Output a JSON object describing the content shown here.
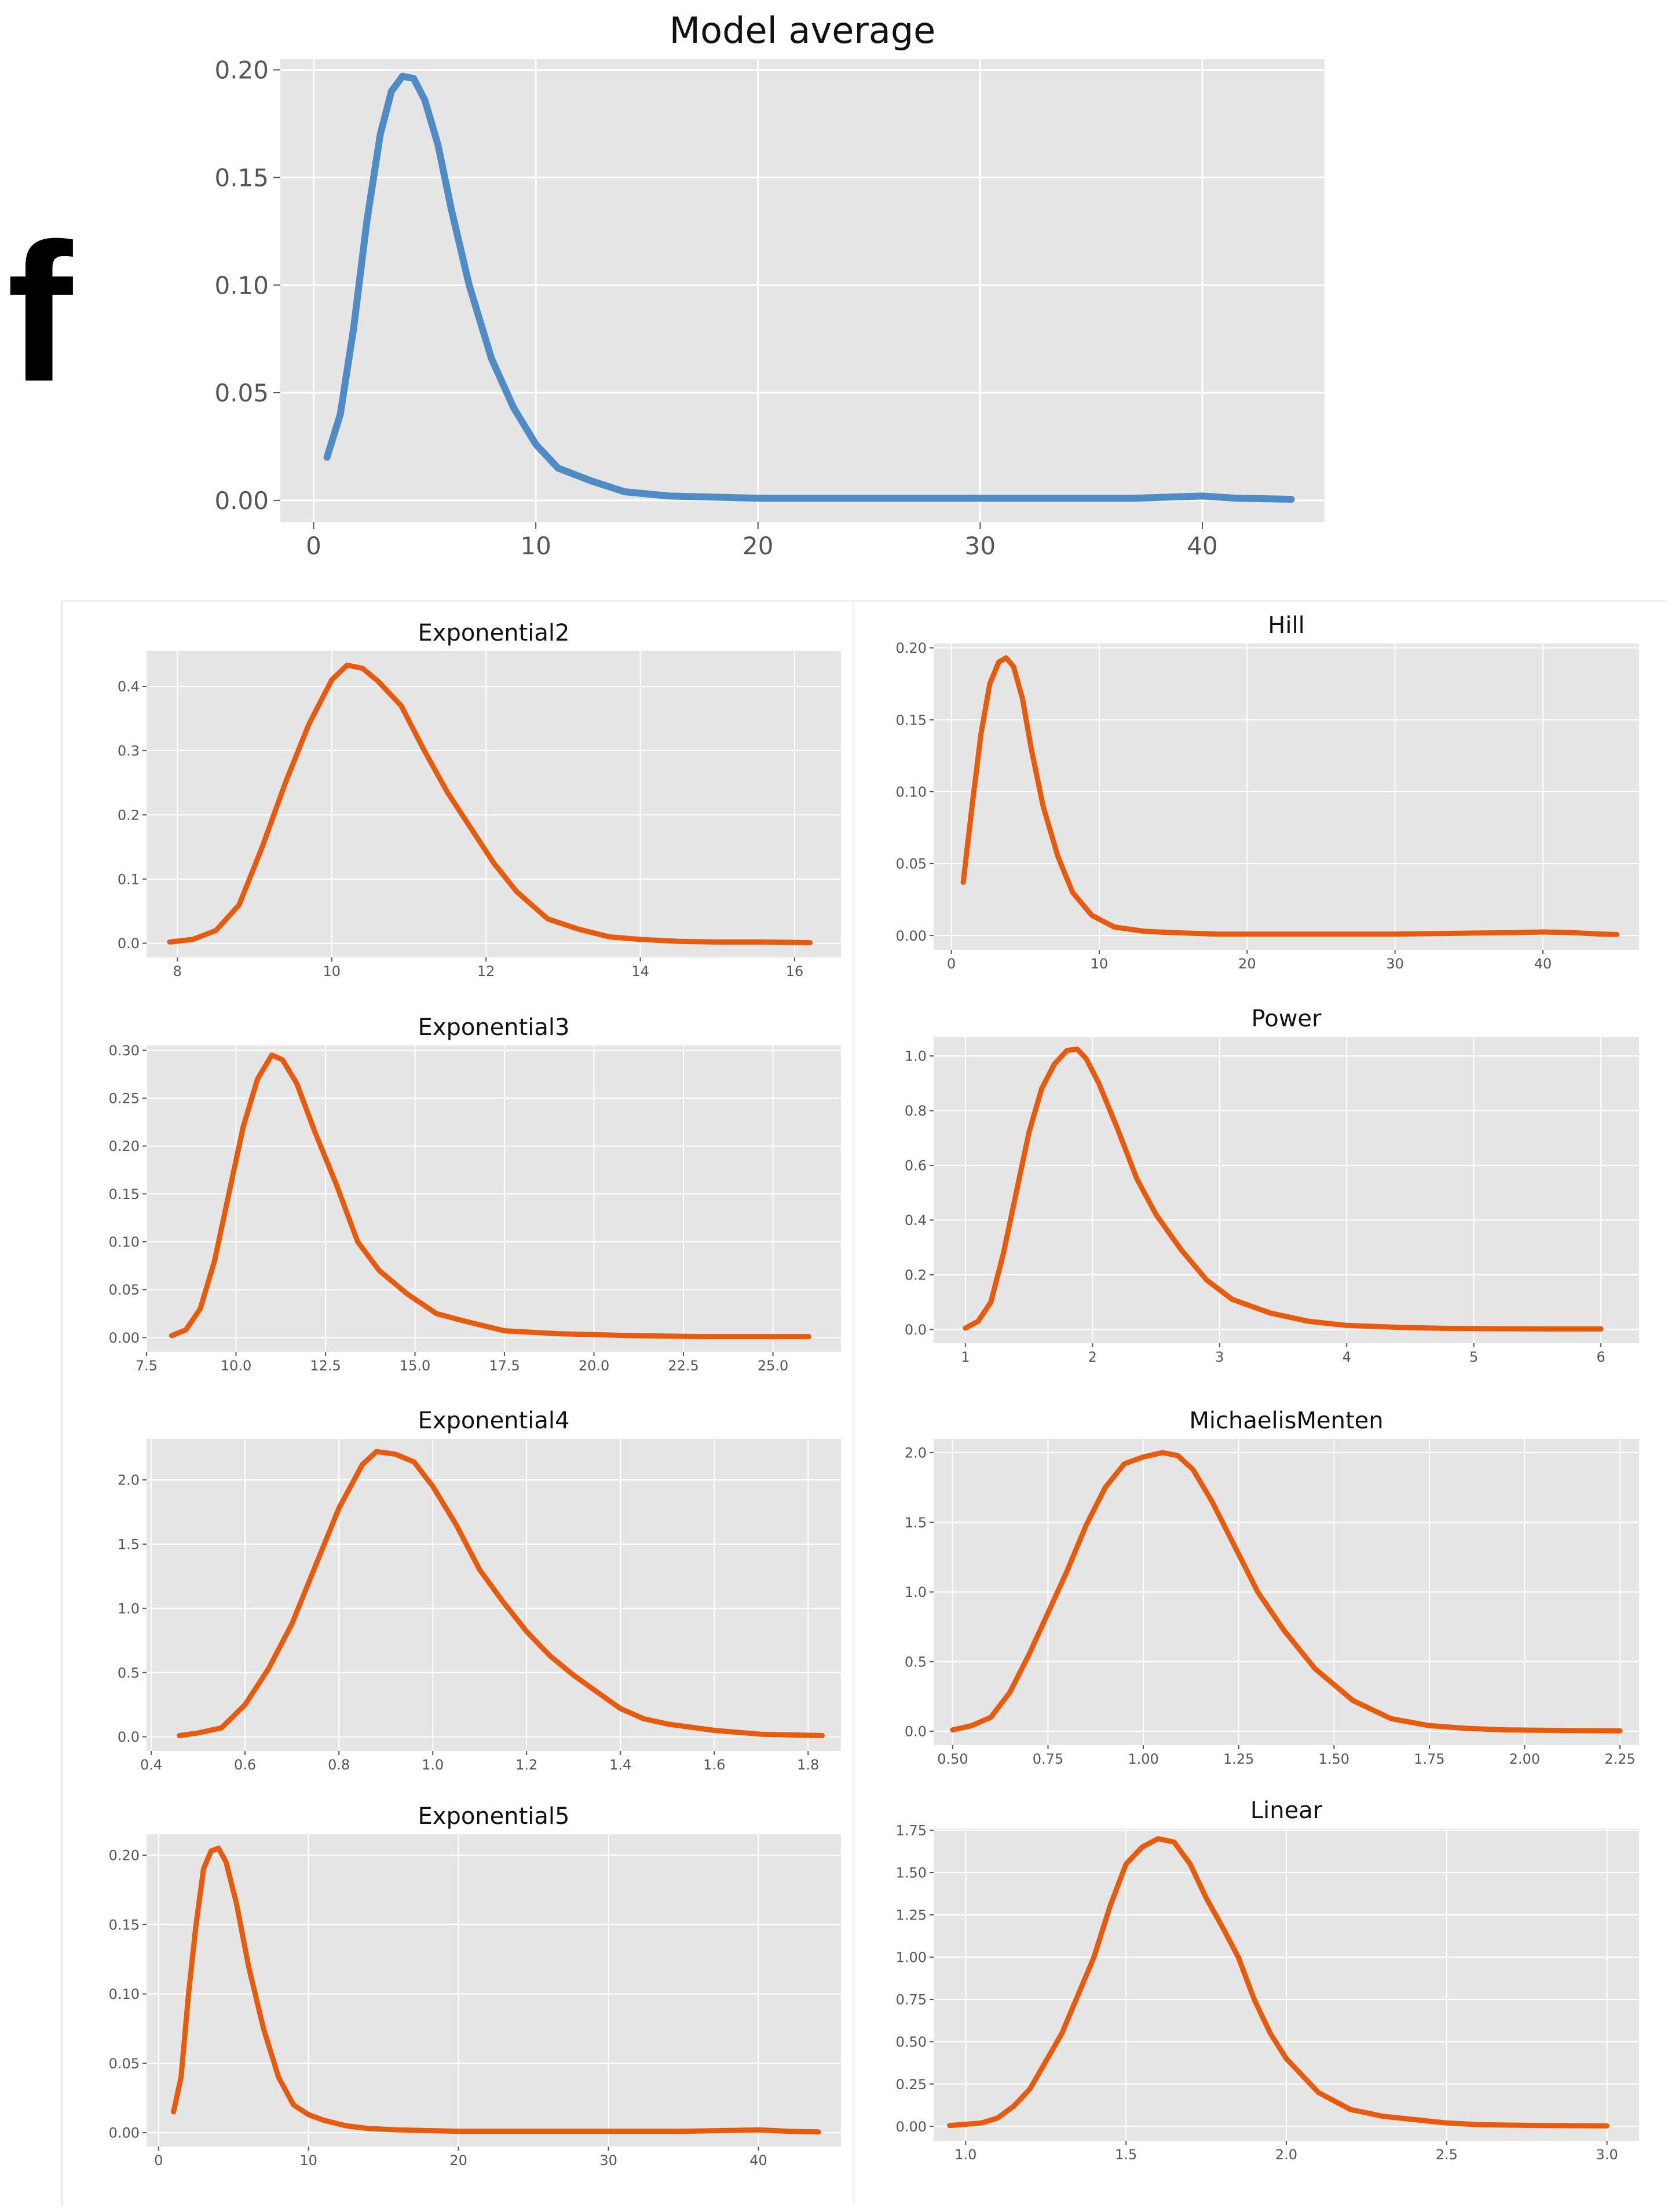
{
  "panel_label": "f",
  "colors": {
    "main_line": "#4f8cc6",
    "sub_line": "#e85a0c",
    "plot_bg": "#e5e5e5",
    "grid": "#ffffff",
    "tick_text": "#555555"
  },
  "chart_data": [
    {
      "id": "model-average",
      "type": "line",
      "title": "Model average",
      "xlim": [
        -1.5,
        45.5
      ],
      "ylim": [
        -0.01,
        0.205
      ],
      "xticks": [
        0,
        10,
        20,
        30,
        40
      ],
      "xtick_labels": [
        "0",
        "10",
        "20",
        "30",
        "40"
      ],
      "yticks": [
        0,
        0.05,
        0.1,
        0.15,
        0.2
      ],
      "ytick_labels": [
        "0.00",
        "0.05",
        "0.10",
        "0.15",
        "0.20"
      ],
      "series": [
        {
          "name": "Model average",
          "color": "#4f8cc6",
          "x": [
            0.6,
            1.2,
            1.8,
            2.4,
            3.0,
            3.5,
            4.0,
            4.5,
            5.0,
            5.6,
            6.2,
            7.0,
            8.0,
            9.0,
            10.0,
            11.0,
            12.5,
            14.0,
            16.0,
            18.0,
            20.0,
            22.0,
            25.0,
            28.0,
            31.0,
            34.0,
            37.0,
            40.0,
            41.5,
            43.0,
            44.0
          ],
          "y": [
            0.02,
            0.04,
            0.08,
            0.13,
            0.17,
            0.19,
            0.197,
            0.196,
            0.186,
            0.165,
            0.135,
            0.1,
            0.066,
            0.043,
            0.026,
            0.015,
            0.009,
            0.004,
            0.002,
            0.0015,
            0.001,
            0.001,
            0.001,
            0.001,
            0.001,
            0.001,
            0.001,
            0.002,
            0.001,
            0.0007,
            0.0005
          ]
        }
      ]
    },
    {
      "id": "exponential2",
      "type": "line",
      "title": "Exponential2",
      "xlim": [
        7.6,
        16.6
      ],
      "ylim": [
        -0.022,
        0.455
      ],
      "xticks": [
        8,
        10,
        12,
        14,
        16
      ],
      "xtick_labels": [
        "8",
        "10",
        "12",
        "14",
        "16"
      ],
      "yticks": [
        0,
        0.1,
        0.2,
        0.3,
        0.4
      ],
      "ytick_labels": [
        "0.0",
        "0.1",
        "0.2",
        "0.3",
        "0.4"
      ],
      "series": [
        {
          "name": "Exponential2",
          "color": "#e85a0c",
          "x": [
            7.9,
            8.2,
            8.5,
            8.8,
            9.1,
            9.4,
            9.7,
            10.0,
            10.2,
            10.4,
            10.6,
            10.9,
            11.2,
            11.5,
            11.8,
            12.1,
            12.4,
            12.8,
            13.2,
            13.6,
            14.0,
            14.5,
            15.0,
            15.6,
            16.2
          ],
          "y": [
            0.002,
            0.006,
            0.02,
            0.06,
            0.15,
            0.25,
            0.34,
            0.41,
            0.433,
            0.428,
            0.408,
            0.37,
            0.3,
            0.235,
            0.18,
            0.125,
            0.08,
            0.038,
            0.022,
            0.01,
            0.006,
            0.003,
            0.002,
            0.002,
            0.001
          ]
        }
      ]
    },
    {
      "id": "hill",
      "type": "line",
      "title": "Hill",
      "xlim": [
        -1.2,
        46.5
      ],
      "ylim": [
        -0.01,
        0.203
      ],
      "xticks": [
        0,
        10,
        20,
        30,
        40
      ],
      "xtick_labels": [
        "0",
        "10",
        "20",
        "30",
        "40"
      ],
      "yticks": [
        0,
        0.05,
        0.1,
        0.15,
        0.2
      ],
      "ytick_labels": [
        "0.00",
        "0.05",
        "0.10",
        "0.15",
        "0.20"
      ],
      "series": [
        {
          "name": "Hill",
          "color": "#e85a0c",
          "x": [
            0.8,
            1.4,
            2.0,
            2.6,
            3.2,
            3.7,
            4.2,
            4.8,
            5.4,
            6.2,
            7.2,
            8.2,
            9.5,
            11.0,
            13.0,
            15.0,
            18.0,
            22.0,
            26.0,
            30.0,
            34.0,
            38.0,
            40.0,
            42.0,
            44.0,
            45.0
          ],
          "y": [
            0.037,
            0.09,
            0.14,
            0.175,
            0.19,
            0.193,
            0.187,
            0.165,
            0.13,
            0.09,
            0.055,
            0.03,
            0.014,
            0.006,
            0.003,
            0.002,
            0.001,
            0.001,
            0.001,
            0.001,
            0.0015,
            0.002,
            0.0025,
            0.002,
            0.001,
            0.0007
          ]
        }
      ]
    },
    {
      "id": "exponential3",
      "type": "line",
      "title": "Exponential3",
      "xlim": [
        7.5,
        26.9
      ],
      "ylim": [
        -0.015,
        0.305
      ],
      "xticks": [
        7.5,
        10.0,
        12.5,
        15.0,
        17.5,
        20.0,
        22.5,
        25.0
      ],
      "xtick_labels": [
        "7.5",
        "10.0",
        "12.5",
        "15.0",
        "17.5",
        "20.0",
        "22.5",
        "25.0"
      ],
      "yticks": [
        0,
        0.05,
        0.1,
        0.15,
        0.2,
        0.25,
        0.3
      ],
      "ytick_labels": [
        "0.00",
        "0.05",
        "0.10",
        "0.15",
        "0.20",
        "0.25",
        "0.30"
      ],
      "series": [
        {
          "name": "Exponential3",
          "color": "#e85a0c",
          "x": [
            8.2,
            8.6,
            9.0,
            9.4,
            9.8,
            10.2,
            10.6,
            11.0,
            11.3,
            11.7,
            12.2,
            12.8,
            13.4,
            14.0,
            14.8,
            15.6,
            16.4,
            17.5,
            19.0,
            21.0,
            23.0,
            25.0,
            26.0
          ],
          "y": [
            0.002,
            0.008,
            0.03,
            0.08,
            0.15,
            0.22,
            0.27,
            0.295,
            0.29,
            0.265,
            0.215,
            0.16,
            0.1,
            0.07,
            0.045,
            0.025,
            0.017,
            0.007,
            0.004,
            0.002,
            0.001,
            0.001,
            0.001
          ]
        }
      ]
    },
    {
      "id": "power",
      "type": "line",
      "title": "Power",
      "xlim": [
        0.75,
        6.3
      ],
      "ylim": [
        -0.05,
        1.07
      ],
      "xticks": [
        1,
        2,
        3,
        4,
        5,
        6
      ],
      "xtick_labels": [
        "1",
        "2",
        "3",
        "4",
        "5",
        "6"
      ],
      "yticks": [
        0,
        0.2,
        0.4,
        0.6,
        0.8,
        1.0
      ],
      "ytick_labels": [
        "0.0",
        "0.2",
        "0.4",
        "0.6",
        "0.8",
        "1.0"
      ],
      "series": [
        {
          "name": "Power",
          "color": "#e85a0c",
          "x": [
            1.0,
            1.1,
            1.2,
            1.3,
            1.4,
            1.5,
            1.6,
            1.7,
            1.8,
            1.88,
            1.95,
            2.05,
            2.2,
            2.35,
            2.5,
            2.7,
            2.9,
            3.1,
            3.4,
            3.7,
            4.0,
            4.4,
            4.8,
            5.2,
            5.6,
            6.0
          ],
          "y": [
            0.005,
            0.03,
            0.1,
            0.28,
            0.5,
            0.72,
            0.88,
            0.97,
            1.02,
            1.025,
            0.99,
            0.9,
            0.73,
            0.55,
            0.42,
            0.29,
            0.18,
            0.11,
            0.06,
            0.03,
            0.015,
            0.008,
            0.004,
            0.003,
            0.002,
            0.002
          ]
        }
      ]
    },
    {
      "id": "exponential4",
      "type": "line",
      "title": "Exponential4",
      "xlim": [
        0.39,
        1.87
      ],
      "ylim": [
        -0.11,
        2.32
      ],
      "xticks": [
        0.4,
        0.6,
        0.8,
        1.0,
        1.2,
        1.4,
        1.6,
        1.8
      ],
      "xtick_labels": [
        "0.4",
        "0.6",
        "0.8",
        "1.0",
        "1.2",
        "1.4",
        "1.6",
        "1.8"
      ],
      "yticks": [
        0,
        0.5,
        1.0,
        1.5,
        2.0
      ],
      "ytick_labels": [
        "0.0",
        "0.5",
        "1.0",
        "1.5",
        "2.0"
      ],
      "series": [
        {
          "name": "Exponential4",
          "color": "#e85a0c",
          "x": [
            0.46,
            0.5,
            0.55,
            0.6,
            0.65,
            0.7,
            0.75,
            0.8,
            0.85,
            0.88,
            0.92,
            0.96,
            1.0,
            1.05,
            1.1,
            1.15,
            1.2,
            1.25,
            1.3,
            1.35,
            1.4,
            1.45,
            1.5,
            1.6,
            1.7,
            1.83
          ],
          "y": [
            0.01,
            0.03,
            0.07,
            0.25,
            0.53,
            0.88,
            1.33,
            1.78,
            2.12,
            2.22,
            2.2,
            2.14,
            1.95,
            1.65,
            1.3,
            1.05,
            0.82,
            0.63,
            0.48,
            0.35,
            0.22,
            0.14,
            0.1,
            0.05,
            0.02,
            0.01
          ]
        }
      ]
    },
    {
      "id": "michaelismenten",
      "type": "line",
      "title": "MichaelisMenten",
      "xlim": [
        0.45,
        2.3
      ],
      "ylim": [
        -0.1,
        2.1
      ],
      "xticks": [
        0.5,
        0.75,
        1.0,
        1.25,
        1.5,
        1.75,
        2.0,
        2.25
      ],
      "xtick_labels": [
        "0.50",
        "0.75",
        "1.00",
        "1.25",
        "1.50",
        "1.75",
        "2.00",
        "2.25"
      ],
      "yticks": [
        0,
        0.5,
        1.0,
        1.5,
        2.0
      ],
      "ytick_labels": [
        "0.0",
        "0.5",
        "1.0",
        "1.5",
        "2.0"
      ],
      "series": [
        {
          "name": "MichaelisMenten",
          "color": "#e85a0c",
          "x": [
            0.5,
            0.55,
            0.6,
            0.65,
            0.7,
            0.75,
            0.8,
            0.85,
            0.9,
            0.95,
            1.0,
            1.05,
            1.09,
            1.13,
            1.18,
            1.23,
            1.3,
            1.37,
            1.45,
            1.55,
            1.65,
            1.75,
            1.85,
            1.95,
            2.1,
            2.25
          ],
          "y": [
            0.01,
            0.04,
            0.1,
            0.28,
            0.55,
            0.85,
            1.15,
            1.48,
            1.75,
            1.92,
            1.97,
            2.0,
            1.98,
            1.88,
            1.65,
            1.38,
            1.0,
            0.72,
            0.45,
            0.22,
            0.09,
            0.04,
            0.02,
            0.01,
            0.005,
            0.003
          ]
        }
      ]
    },
    {
      "id": "exponential5",
      "type": "line",
      "title": "Exponential5",
      "xlim": [
        -0.8,
        45.5
      ],
      "ylim": [
        -0.01,
        0.215
      ],
      "xticks": [
        0,
        10,
        20,
        30,
        40
      ],
      "xtick_labels": [
        "0",
        "10",
        "20",
        "30",
        "40"
      ],
      "yticks": [
        0,
        0.05,
        0.1,
        0.15,
        0.2
      ],
      "ytick_labels": [
        "0.00",
        "0.05",
        "0.10",
        "0.15",
        "0.20"
      ],
      "series": [
        {
          "name": "Exponential5",
          "color": "#e85a0c",
          "x": [
            1.0,
            1.5,
            2.0,
            2.5,
            3.0,
            3.5,
            4.0,
            4.5,
            5.2,
            6.0,
            7.0,
            8.0,
            9.0,
            10.0,
            11.0,
            12.5,
            14.0,
            16.0,
            20.0,
            25.0,
            30.0,
            35.0,
            40.0,
            42.0,
            44.0
          ],
          "y": [
            0.015,
            0.04,
            0.1,
            0.15,
            0.19,
            0.203,
            0.205,
            0.195,
            0.165,
            0.12,
            0.075,
            0.04,
            0.02,
            0.013,
            0.009,
            0.005,
            0.003,
            0.002,
            0.001,
            0.001,
            0.001,
            0.001,
            0.002,
            0.001,
            0.0005
          ]
        }
      ]
    },
    {
      "id": "linear",
      "type": "line",
      "title": "Linear",
      "xlim": [
        0.9,
        3.1
      ],
      "ylim": [
        -0.085,
        1.76
      ],
      "xticks": [
        1.0,
        1.5,
        2.0,
        2.5,
        3.0
      ],
      "xtick_labels": [
        "1.0",
        "1.5",
        "2.0",
        "2.5",
        "3.0"
      ],
      "yticks": [
        0,
        0.25,
        0.5,
        0.75,
        1.0,
        1.25,
        1.5,
        1.75
      ],
      "ytick_labels": [
        "0.00",
        "0.25",
        "0.50",
        "0.75",
        "1.00",
        "1.25",
        "1.50",
        "1.75"
      ],
      "series": [
        {
          "name": "Linear",
          "color": "#e85a0c",
          "x": [
            0.95,
            1.05,
            1.1,
            1.15,
            1.2,
            1.3,
            1.4,
            1.45,
            1.5,
            1.55,
            1.6,
            1.65,
            1.7,
            1.75,
            1.8,
            1.85,
            1.9,
            1.95,
            2.0,
            2.1,
            2.2,
            2.3,
            2.4,
            2.5,
            2.6,
            2.8,
            3.0
          ],
          "y": [
            0.005,
            0.02,
            0.05,
            0.12,
            0.22,
            0.55,
            1.0,
            1.3,
            1.55,
            1.65,
            1.7,
            1.68,
            1.55,
            1.35,
            1.18,
            1.0,
            0.75,
            0.55,
            0.4,
            0.2,
            0.1,
            0.06,
            0.04,
            0.02,
            0.01,
            0.005,
            0.003
          ]
        }
      ]
    }
  ]
}
